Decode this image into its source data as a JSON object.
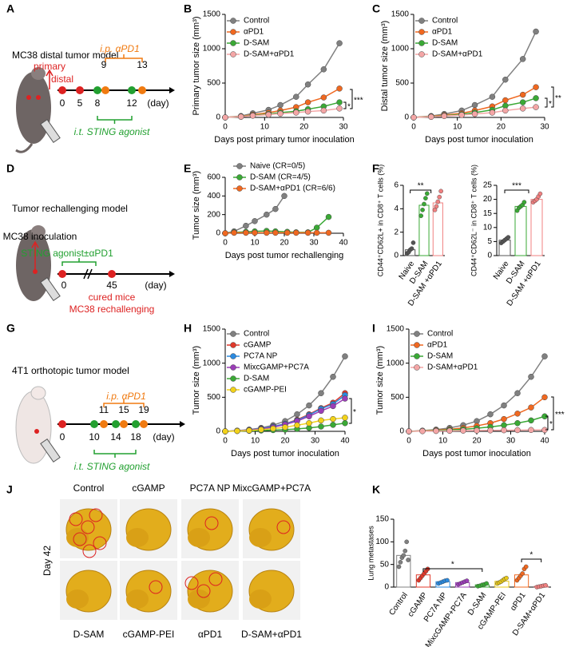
{
  "panel_labels": [
    "A",
    "B",
    "C",
    "D",
    "E",
    "F",
    "G",
    "H",
    "I",
    "J",
    "K"
  ],
  "schematics": [
    {
      "title": "MC38 distal tumor model",
      "labels": [
        "primary",
        "distal",
        "i.p. αPD1",
        "9",
        "13",
        "0",
        "5",
        "8",
        "12",
        "(day)",
        "i.t. STING agonist"
      ]
    },
    {
      "title": "Tumor rechallenging model",
      "labels": [
        "MC38 inoculation",
        "STING agonist±αPD1",
        "0",
        "45",
        "(day)",
        "cured mice",
        "MC38 rechallenging"
      ]
    },
    {
      "title": "4T1 orthotopic tumor model",
      "labels": [
        "i.p. αPD1",
        "11",
        "15",
        "19",
        "0",
        "10",
        "14",
        "18",
        "(day)",
        "i.t. STING agonist"
      ]
    }
  ],
  "photos": {
    "day_label": "Day 42",
    "groups": [
      "Control",
      "cGAMP",
      "PC7A NP",
      "MixcGAMP+PC7A",
      "D-SAM",
      "cGAMP-PEI",
      "αPD1",
      "D-SAM+αPD1"
    ]
  },
  "chart_data": [
    {
      "type": "line",
      "ylabel": "Primary tumor size (mm³)",
      "xlabel": "Days post primary tumor inoculation",
      "x": [
        0,
        4,
        7,
        11,
        14,
        18,
        21,
        25,
        29
      ],
      "xlim": [
        0,
        30
      ],
      "xticks": [
        0,
        10,
        20,
        30
      ],
      "ylim": [
        0,
        1500
      ],
      "yticks": [
        0,
        500,
        1000,
        1500
      ],
      "series": [
        {
          "name": "Control",
          "color": "#808080",
          "values": [
            0,
            20,
            60,
            110,
            180,
            300,
            480,
            700,
            1080
          ]
        },
        {
          "name": "αPD1",
          "color": "#f06820",
          "values": [
            0,
            15,
            40,
            70,
            100,
            150,
            220,
            290,
            420
          ]
        },
        {
          "name": "D-SAM",
          "color": "#3aa935",
          "values": [
            0,
            10,
            30,
            50,
            70,
            90,
            120,
            160,
            220
          ]
        },
        {
          "name": "D-SAM+αPD1",
          "color": "#f4a6a6",
          "values": [
            0,
            10,
            25,
            40,
            55,
            70,
            85,
            100,
            130
          ]
        }
      ],
      "annotations": [
        "***",
        "*"
      ]
    },
    {
      "type": "line",
      "ylabel": "Distal tumor size (mm³)",
      "xlabel": "Days post tumor inoculation",
      "x": [
        0,
        4,
        7,
        11,
        14,
        18,
        21,
        25,
        28
      ],
      "xlim": [
        0,
        30
      ],
      "xticks": [
        0,
        10,
        20,
        30
      ],
      "ylim": [
        0,
        1500
      ],
      "yticks": [
        0,
        500,
        1000,
        1500
      ],
      "series": [
        {
          "name": "Control",
          "color": "#808080",
          "values": [
            0,
            20,
            50,
            100,
            180,
            300,
            550,
            850,
            1250
          ]
        },
        {
          "name": "αPD1",
          "color": "#f06820",
          "values": [
            0,
            15,
            35,
            60,
            100,
            160,
            250,
            330,
            440
          ]
        },
        {
          "name": "D-SAM",
          "color": "#3aa935",
          "values": [
            0,
            10,
            25,
            45,
            70,
            110,
            170,
            220,
            280
          ]
        },
        {
          "name": "D-SAM+αPD1",
          "color": "#f4a6a6",
          "values": [
            0,
            8,
            20,
            35,
            50,
            70,
            100,
            130,
            150
          ]
        }
      ],
      "annotations": [
        "**",
        "*"
      ]
    },
    {
      "type": "line",
      "ylabel": "Tumor size (mm³)",
      "xlabel": "Days post tumor rechallenging",
      "xlim": [
        0,
        40
      ],
      "xticks": [
        0,
        10,
        20,
        30,
        40
      ],
      "ylim": [
        0,
        600
      ],
      "yticks": [
        0,
        200,
        400,
        600
      ],
      "series": [
        {
          "name": "Naive (CR=0/5)",
          "color": "#808080",
          "x": [
            0,
            3,
            7,
            10,
            14,
            17,
            20
          ],
          "values": [
            0,
            20,
            80,
            130,
            200,
            260,
            400
          ]
        },
        {
          "name": "D-SAM (CR=4/5)",
          "color": "#3aa935",
          "x": [
            0,
            3,
            7,
            10,
            14,
            17,
            21,
            24,
            28,
            31,
            35
          ],
          "values": [
            0,
            10,
            15,
            20,
            25,
            20,
            15,
            10,
            10,
            60,
            175
          ]
        },
        {
          "name": "D-SAM+αPD1 (CR=6/6)",
          "color": "#f06820",
          "x": [
            0,
            3,
            7,
            10,
            14,
            17,
            21,
            24,
            28,
            31,
            35
          ],
          "values": [
            0,
            5,
            5,
            5,
            5,
            5,
            5,
            5,
            5,
            5,
            5
          ]
        }
      ],
      "annotations": []
    },
    {
      "type": "dotbar",
      "ylabel": "CD44⁺CD62L+ in CD8⁺ T cells (%)",
      "categories": [
        "Naive",
        "D-SAM",
        "D-SAM +αPD1"
      ],
      "colors": [
        "#555555",
        "#3aa935",
        "#f08080"
      ],
      "values": [
        0.5,
        4.3,
        4.5
      ],
      "points": [
        [
          0.2,
          0.3,
          0.5,
          0.6,
          1.1
        ],
        [
          3.4,
          3.9,
          4.4,
          4.9,
          5.3
        ],
        [
          3.9,
          4.2,
          4.6,
          5.0,
          5.5
        ]
      ],
      "ylim": [
        0,
        6
      ],
      "yticks": [
        0,
        2,
        4,
        6
      ],
      "annotations": [
        "**"
      ]
    },
    {
      "type": "dotbar",
      "ylabel": "CD44⁺CD62L⁻ in CD8⁺ T cells (%)",
      "categories": [
        "Naive",
        "D-SAM",
        "D-SAM +αPD1"
      ],
      "colors": [
        "#555555",
        "#3aa935",
        "#f08080"
      ],
      "values": [
        5.5,
        17.5,
        20
      ],
      "points": [
        [
          4.5,
          5,
          5.5,
          6,
          6.5
        ],
        [
          16,
          17,
          17.5,
          18,
          19
        ],
        [
          19,
          19.5,
          20,
          21,
          22
        ]
      ],
      "ylim": [
        0,
        25
      ],
      "yticks": [
        0,
        5,
        10,
        15,
        20,
        25
      ],
      "annotations": [
        "***"
      ]
    },
    {
      "type": "line",
      "ylabel": "Tumor size (mm³)",
      "xlabel": "Days post tumor inoculation",
      "x": [
        0,
        4,
        8,
        12,
        16,
        20,
        24,
        28,
        32,
        36,
        40
      ],
      "xlim": [
        0,
        40
      ],
      "xticks": [
        0,
        10,
        20,
        30,
        40
      ],
      "ylim": [
        0,
        1500
      ],
      "yticks": [
        0,
        500,
        1000,
        1500
      ],
      "series": [
        {
          "name": "Control",
          "color": "#808080",
          "values": [
            0,
            10,
            25,
            50,
            90,
            150,
            250,
            380,
            560,
            800,
            1100
          ]
        },
        {
          "name": "cGAMP",
          "color": "#e0392b",
          "values": [
            0,
            8,
            20,
            40,
            70,
            110,
            170,
            250,
            340,
            420,
            560
          ]
        },
        {
          "name": "PC7A NP",
          "color": "#2a8ae0",
          "values": [
            0,
            8,
            20,
            40,
            70,
            110,
            160,
            240,
            330,
            400,
            530
          ]
        },
        {
          "name": "MixcGAMP+PC7A",
          "color": "#9b3db8",
          "values": [
            0,
            8,
            18,
            35,
            60,
            100,
            150,
            220,
            300,
            370,
            480
          ]
        },
        {
          "name": "D-SAM",
          "color": "#3aa935",
          "values": [
            0,
            5,
            8,
            12,
            18,
            25,
            35,
            50,
            70,
            95,
            120
          ]
        },
        {
          "name": "cGAMP-PEI",
          "color": "#f2d21a",
          "values": [
            0,
            5,
            12,
            25,
            40,
            60,
            90,
            120,
            160,
            180,
            200
          ]
        }
      ],
      "annotations": [
        "*"
      ]
    },
    {
      "type": "line",
      "ylabel": "Tumor size (mm³)",
      "xlabel": "Days post tumor inoculation",
      "x": [
        0,
        4,
        8,
        12,
        16,
        20,
        24,
        28,
        32,
        36,
        40
      ],
      "xlim": [
        0,
        40
      ],
      "xticks": [
        0,
        10,
        20,
        30,
        40
      ],
      "ylim": [
        0,
        1500
      ],
      "yticks": [
        0,
        500,
        1000,
        1500
      ],
      "series": [
        {
          "name": "Control",
          "color": "#808080",
          "values": [
            0,
            10,
            25,
            50,
            90,
            150,
            250,
            380,
            560,
            800,
            1100
          ]
        },
        {
          "name": "αPD1",
          "color": "#f06820",
          "values": [
            0,
            8,
            18,
            30,
            50,
            80,
            120,
            180,
            260,
            350,
            500
          ]
        },
        {
          "name": "D-SAM",
          "color": "#3aa935",
          "values": [
            0,
            5,
            10,
            20,
            30,
            45,
            65,
            90,
            120,
            160,
            220
          ]
        },
        {
          "name": "D-SAM+αPD1",
          "color": "#f4a6a6",
          "values": [
            0,
            3,
            5,
            8,
            10,
            12,
            14,
            16,
            18,
            20,
            20
          ]
        }
      ],
      "annotations": [
        "***",
        "*"
      ]
    },
    {
      "type": "dotbar",
      "ylabel": "Lung metastases",
      "categories": [
        "Control",
        "cGAMP",
        "PC7A NP",
        "MixcGAMP+PC7A",
        "D-SAM",
        "cGAMP-PEI",
        "αPD1",
        "D-SAM+αPD1"
      ],
      "colors": [
        "#808080",
        "#e0392b",
        "#2a8ae0",
        "#9b3db8",
        "#3aa935",
        "#e8c81a",
        "#f06820",
        "#f08080"
      ],
      "values": [
        70,
        27,
        12,
        10,
        5,
        13,
        27,
        2
      ],
      "points": [
        [
          45,
          55,
          65,
          70,
          80,
          100,
          60
        ],
        [
          15,
          20,
          25,
          30,
          35,
          40
        ],
        [
          8,
          10,
          12,
          14,
          15
        ],
        [
          6,
          8,
          10,
          12,
          14
        ],
        [
          2,
          3,
          5,
          6,
          8
        ],
        [
          8,
          10,
          12,
          15,
          18,
          20
        ],
        [
          15,
          20,
          25,
          30,
          40,
          45
        ],
        [
          0,
          1,
          2,
          3,
          4
        ]
      ],
      "ylim": [
        0,
        150
      ],
      "yticks": [
        0,
        50,
        100,
        150
      ],
      "annotations": [
        "*",
        "*"
      ]
    }
  ]
}
